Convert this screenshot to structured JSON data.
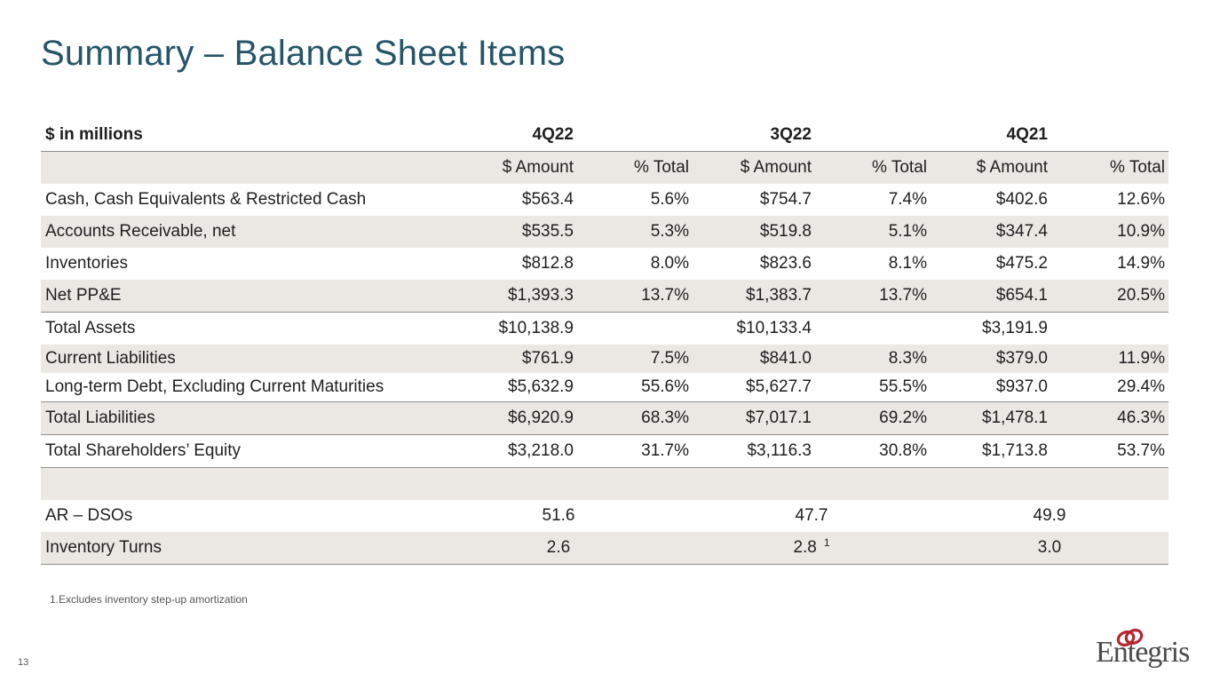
{
  "title": "Summary – Balance Sheet Items",
  "table": {
    "unit_label": "$ in millions",
    "periods": [
      "4Q22",
      "3Q22",
      "4Q21"
    ],
    "subheaders": [
      "$ Amount",
      "% Total",
      "$ Amount",
      "% Total",
      "$ Amount",
      "% Total"
    ],
    "rows": [
      {
        "label": "Cash, Cash Equivalents & Restricted Cash",
        "values": [
          "$563.4",
          "5.6%",
          "$754.7",
          "7.4%",
          "$402.6",
          "12.6%"
        ]
      },
      {
        "label": "Accounts Receivable, net",
        "values": [
          "$535.5",
          "5.3%",
          "$519.8",
          "5.1%",
          "$347.4",
          "10.9%"
        ]
      },
      {
        "label": "Inventories",
        "values": [
          "$812.8",
          "8.0%",
          "$823.6",
          "8.1%",
          "$475.2",
          "14.9%"
        ]
      },
      {
        "label": "Net PP&E",
        "values": [
          "$1,393.3",
          "13.7%",
          "$1,383.7",
          "13.7%",
          "$654.1",
          "20.5%"
        ]
      },
      {
        "label": "Total Assets",
        "values": [
          "$10,138.9",
          "",
          "$10,133.4",
          "",
          "$3,191.9",
          ""
        ]
      },
      {
        "label": "Current Liabilities",
        "values": [
          "$761.9",
          "7.5%",
          "$841.0",
          "8.3%",
          "$379.0",
          "11.9%"
        ]
      },
      {
        "label": "Long-term Debt, Excluding Current Maturities",
        "values": [
          "$5,632.9",
          "55.6%",
          "$5,627.7",
          "55.5%",
          "$937.0",
          "29.4%"
        ]
      },
      {
        "label": "Total Liabilities",
        "values": [
          "$6,920.9",
          "68.3%",
          "$7,017.1",
          "69.2%",
          "$1,478.1",
          "46.3%"
        ]
      },
      {
        "label": "Total Shareholders’ Equity",
        "values": [
          "$3,218.0",
          "31.7%",
          "$3,116.3",
          "30.8%",
          "$1,713.8",
          "53.7%"
        ]
      }
    ],
    "metrics": [
      {
        "label": "AR – DSOs",
        "values": [
          "51.6",
          "47.7",
          "49.9"
        ],
        "superscript": ""
      },
      {
        "label": "Inventory Turns",
        "values": [
          "2.6",
          "2.8",
          "3.0"
        ],
        "superscript": "1"
      }
    ]
  },
  "footnote": "1.Excludes inventory step-up amortization",
  "page_number": "13",
  "logo_text": "Entegris",
  "colors": {
    "title": "#245568",
    "shade": "#ebe7e3",
    "logo_red": "#b5262e",
    "logo_gray": "#4a4a4a"
  }
}
